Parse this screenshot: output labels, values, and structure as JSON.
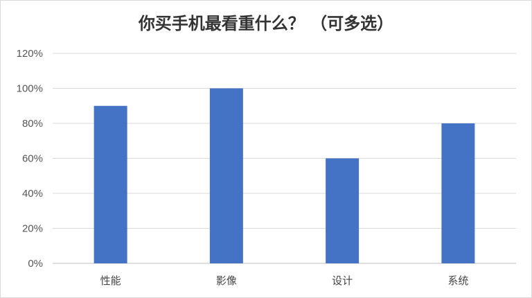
{
  "chart_data": {
    "type": "bar",
    "title": "你买手机最看重什么？ （可多选）",
    "categories": [
      "性能",
      "影像",
      "设计",
      "系统"
    ],
    "values": [
      0.9,
      1.0,
      0.6,
      0.8
    ],
    "ylim": [
      0,
      1.2
    ],
    "yticks": [
      "0%",
      "20%",
      "40%",
      "60%",
      "80%",
      "100%",
      "120%"
    ],
    "xlabel": "",
    "ylabel": "",
    "grid": true,
    "legend": "none",
    "colors": {
      "bar": "#4472C4",
      "grid": "#d9d9d9",
      "axis": "#bfbfbf"
    }
  }
}
